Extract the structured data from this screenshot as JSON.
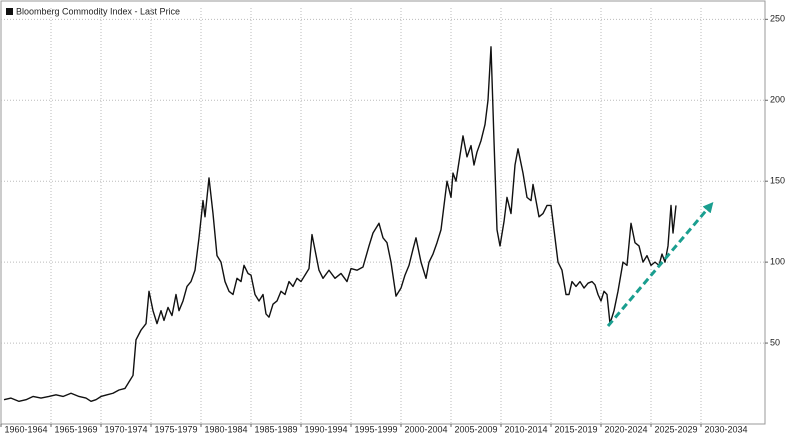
{
  "chart_data": {
    "type": "line",
    "legend": "Bloomberg Commodity Index - Last Price",
    "xlim": [
      1960,
      2036.4
    ],
    "xticks": [
      {
        "value": 1960,
        "label": "1960-1964"
      },
      {
        "value": 1965,
        "label": "1965-1969"
      },
      {
        "value": 1970,
        "label": "1970-1974"
      },
      {
        "value": 1975,
        "label": "1975-1979"
      },
      {
        "value": 1980,
        "label": "1980-1984"
      },
      {
        "value": 1985,
        "label": "1985-1989"
      },
      {
        "value": 1990,
        "label": "1990-1994"
      },
      {
        "value": 1995,
        "label": "1995-1999"
      },
      {
        "value": 2000,
        "label": "2000-2004"
      },
      {
        "value": 2005,
        "label": "2005-2009"
      },
      {
        "value": 2010,
        "label": "2010-2014"
      },
      {
        "value": 2015,
        "label": "2015-2019"
      },
      {
        "value": 2020,
        "label": "2020-2024"
      },
      {
        "value": 2025,
        "label": "2025-2029"
      },
      {
        "value": 2030,
        "label": "2030-2034"
      }
    ],
    "ylim": [
      0,
      257
    ],
    "yticks": [
      50,
      100,
      150,
      200,
      250
    ],
    "grid": true,
    "series": [
      {
        "name": "Bloomberg Commodity Index - Last Price",
        "color": "#111111",
        "x": [
          1960.3,
          1961,
          1961.8,
          1962.5,
          1963.2,
          1964,
          1964.8,
          1965.5,
          1966.2,
          1967,
          1967.8,
          1968.5,
          1969,
          1969.5,
          1970,
          1970.6,
          1971.2,
          1971.8,
          1972.4,
          1972.8,
          1973.2,
          1973.5,
          1974,
          1974.5,
          1974.8,
          1975.2,
          1975.6,
          1976,
          1976.3,
          1976.7,
          1977.1,
          1977.5,
          1977.8,
          1978.2,
          1978.6,
          1979,
          1979.4,
          1979.8,
          1980.2,
          1980.4,
          1980.8,
          1981.2,
          1981.6,
          1982,
          1982.4,
          1982.8,
          1983.2,
          1983.6,
          1984,
          1984.3,
          1984.7,
          1985,
          1985.4,
          1985.8,
          1986.2,
          1986.5,
          1986.8,
          1987.2,
          1987.6,
          1988,
          1988.4,
          1988.8,
          1989.2,
          1989.6,
          1990,
          1990.4,
          1990.8,
          1991.1,
          1991.8,
          1992.2,
          1992.8,
          1993.4,
          1994,
          1994.6,
          1995,
          1995.6,
          1996.2,
          1996.8,
          1997.2,
          1997.8,
          1998.2,
          1998.6,
          1999,
          1999.5,
          2000,
          2000.4,
          2000.8,
          2001.2,
          2001.5,
          2002,
          2002.5,
          2002.8,
          2003.2,
          2003.6,
          2004,
          2004.6,
          2005,
          2005.2,
          2005.5,
          2005.8,
          2006.2,
          2006.6,
          2007,
          2007.3,
          2007.6,
          2008,
          2008.4,
          2008.7,
          2009,
          2009.3,
          2009.6,
          2009.9,
          2010.3,
          2010.6,
          2011,
          2011.4,
          2011.7,
          2012.2,
          2012.6,
          2013,
          2013.2,
          2013.5,
          2013.8,
          2014.2,
          2014.6,
          2015,
          2015.3,
          2015.7,
          2016.1,
          2016.5,
          2016.8,
          2017.1,
          2017.5,
          2017.9,
          2018.3,
          2018.7,
          2019.1,
          2019.4,
          2019.7,
          2020,
          2020.3,
          2020.6,
          2020.9,
          2021.3,
          2021.7,
          2022.2,
          2022.6,
          2023,
          2023.4,
          2023.8,
          2024.2,
          2024.6,
          2025,
          2025.4,
          2025.8,
          2026.1,
          2026.4,
          2026.7,
          2027,
          2027.2,
          2027.5
        ],
        "values": [
          15,
          16,
          14,
          15,
          17,
          16,
          17,
          18,
          17,
          19,
          17,
          16,
          14,
          15,
          17,
          18,
          19,
          21,
          22,
          26,
          30,
          52,
          58,
          62,
          82,
          70,
          62,
          70,
          64,
          72,
          67,
          80,
          70,
          76,
          85,
          88,
          95,
          115,
          138,
          128,
          152,
          130,
          104,
          100,
          88,
          82,
          80,
          90,
          88,
          98,
          93,
          92,
          80,
          76,
          80,
          68,
          66,
          74,
          76,
          82,
          80,
          88,
          85,
          90,
          88,
          92,
          96,
          117,
          95,
          90,
          95,
          90,
          93,
          88,
          96,
          95,
          97,
          110,
          118,
          124,
          115,
          112,
          100,
          79,
          84,
          92,
          98,
          108,
          115,
          100,
          90,
          100,
          105,
          112,
          120,
          150,
          140,
          155,
          150,
          162,
          178,
          165,
          172,
          160,
          168,
          175,
          185,
          200,
          233,
          175,
          120,
          110,
          125,
          140,
          130,
          160,
          170,
          155,
          140,
          138,
          148,
          138,
          128,
          130,
          135,
          135,
          120,
          100,
          95,
          80,
          80,
          88,
          85,
          88,
          84,
          87,
          88,
          86,
          80,
          76,
          82,
          80,
          62,
          70,
          82,
          100,
          98,
          124,
          112,
          110,
          100,
          104,
          98,
          100,
          98,
          105,
          100,
          110,
          135,
          118,
          135
        ]
      }
    ]
  }
}
